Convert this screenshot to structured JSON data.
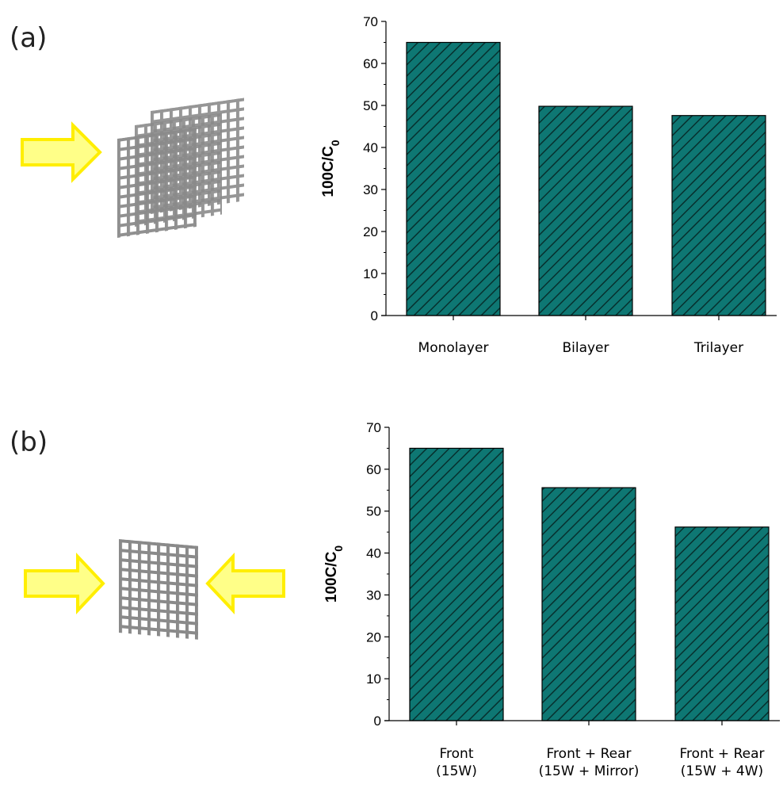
{
  "panels": [
    {
      "label": "(a)",
      "illustration": {
        "arrows": [
          "yellow-arrow-right"
        ],
        "mesh_layers": 3
      },
      "chart_data": {
        "type": "bar",
        "title": "",
        "xlabel": "",
        "ylabel": "100C/C",
        "ylabel_subscript": "0",
        "categories": [
          [
            "Monolayer"
          ],
          [
            "Bilayer"
          ],
          [
            "Trilayer"
          ]
        ],
        "values": [
          65,
          49.8,
          47.6
        ],
        "ylim": [
          0,
          70
        ],
        "yticks": [
          "0",
          "10",
          "20",
          "30",
          "40",
          "50",
          "60",
          "70"
        ],
        "bar_color": "#0e7773",
        "hatch": "diagonal",
        "grid": false,
        "legend": "none"
      }
    },
    {
      "label": "(b)",
      "illustration": {
        "arrows": [
          "yellow-arrow-right",
          "yellow-arrow-left"
        ],
        "mesh_layers": 1
      },
      "chart_data": {
        "type": "bar",
        "title": "",
        "xlabel": "",
        "ylabel": "100C/C",
        "ylabel_subscript": "0",
        "categories": [
          [
            "Front",
            "(15W)"
          ],
          [
            "Front + Rear",
            "(15W + Mirror)"
          ],
          [
            "Front + Rear",
            "(15W + 4W)"
          ]
        ],
        "values": [
          65,
          55.6,
          46.2
        ],
        "ylim": [
          0,
          70
        ],
        "yticks": [
          "0",
          "10",
          "20",
          "30",
          "40",
          "50",
          "60",
          "70"
        ],
        "bar_color": "#0e7773",
        "hatch": "diagonal",
        "grid": false,
        "legend": "none"
      }
    }
  ]
}
